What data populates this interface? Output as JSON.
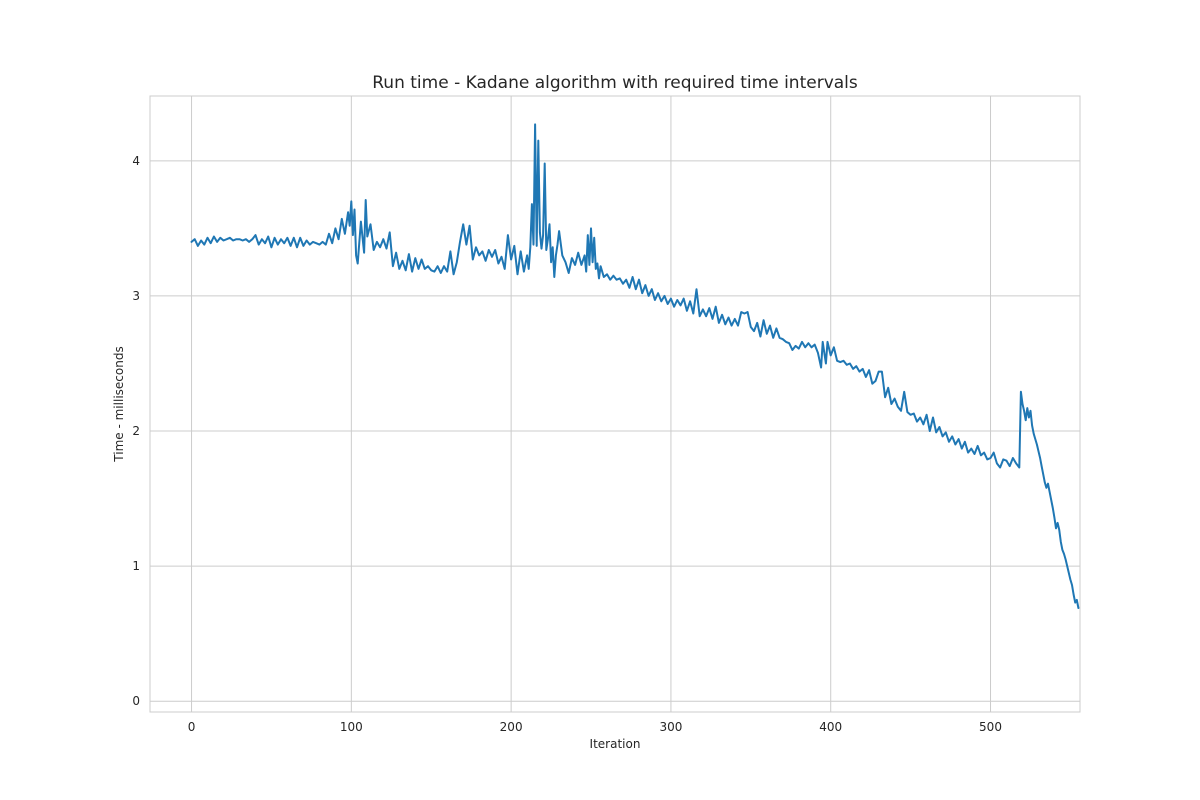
{
  "chart_data": {
    "type": "line",
    "title": "Run time - Kadane algorithm with required time intervals",
    "xlabel": "Iteration",
    "ylabel": "Time - milliseconds",
    "xlim": [
      -26,
      556
    ],
    "ylim": [
      -0.08,
      4.48
    ],
    "xticks": [
      0,
      100,
      200,
      300,
      400,
      500
    ],
    "yticks": [
      0,
      1,
      2,
      3,
      4
    ],
    "grid": true,
    "line_color": "#1f77b4",
    "series": [
      {
        "points": [
          [
            0,
            3.4
          ],
          [
            2,
            3.42
          ],
          [
            4,
            3.37
          ],
          [
            6,
            3.41
          ],
          [
            8,
            3.38
          ],
          [
            10,
            3.43
          ],
          [
            12,
            3.39
          ],
          [
            14,
            3.44
          ],
          [
            16,
            3.4
          ],
          [
            18,
            3.43
          ],
          [
            20,
            3.41
          ],
          [
            22,
            3.42
          ],
          [
            24,
            3.43
          ],
          [
            26,
            3.41
          ],
          [
            28,
            3.42
          ],
          [
            30,
            3.42
          ],
          [
            32,
            3.41
          ],
          [
            34,
            3.42
          ],
          [
            36,
            3.4
          ],
          [
            38,
            3.42
          ],
          [
            40,
            3.45
          ],
          [
            42,
            3.38
          ],
          [
            44,
            3.42
          ],
          [
            46,
            3.39
          ],
          [
            48,
            3.44
          ],
          [
            50,
            3.36
          ],
          [
            52,
            3.43
          ],
          [
            54,
            3.38
          ],
          [
            56,
            3.42
          ],
          [
            58,
            3.39
          ],
          [
            60,
            3.43
          ],
          [
            62,
            3.37
          ],
          [
            64,
            3.43
          ],
          [
            66,
            3.36
          ],
          [
            68,
            3.43
          ],
          [
            70,
            3.37
          ],
          [
            72,
            3.41
          ],
          [
            74,
            3.38
          ],
          [
            76,
            3.4
          ],
          [
            78,
            3.39
          ],
          [
            80,
            3.38
          ],
          [
            82,
            3.4
          ],
          [
            84,
            3.38
          ],
          [
            86,
            3.46
          ],
          [
            88,
            3.39
          ],
          [
            90,
            3.5
          ],
          [
            92,
            3.42
          ],
          [
            94,
            3.57
          ],
          [
            96,
            3.46
          ],
          [
            98,
            3.62
          ],
          [
            99,
            3.52
          ],
          [
            100,
            3.7
          ],
          [
            101,
            3.45
          ],
          [
            102,
            3.64
          ],
          [
            103,
            3.3
          ],
          [
            104,
            3.24
          ],
          [
            106,
            3.55
          ],
          [
            108,
            3.32
          ],
          [
            109,
            3.71
          ],
          [
            110,
            3.44
          ],
          [
            112,
            3.53
          ],
          [
            114,
            3.34
          ],
          [
            116,
            3.4
          ],
          [
            118,
            3.36
          ],
          [
            120,
            3.42
          ],
          [
            122,
            3.35
          ],
          [
            124,
            3.47
          ],
          [
            126,
            3.22
          ],
          [
            128,
            3.32
          ],
          [
            130,
            3.2
          ],
          [
            132,
            3.26
          ],
          [
            134,
            3.19
          ],
          [
            136,
            3.31
          ],
          [
            138,
            3.18
          ],
          [
            140,
            3.28
          ],
          [
            142,
            3.2
          ],
          [
            144,
            3.27
          ],
          [
            146,
            3.2
          ],
          [
            148,
            3.22
          ],
          [
            150,
            3.19
          ],
          [
            152,
            3.18
          ],
          [
            154,
            3.22
          ],
          [
            156,
            3.17
          ],
          [
            158,
            3.22
          ],
          [
            160,
            3.18
          ],
          [
            162,
            3.33
          ],
          [
            164,
            3.16
          ],
          [
            166,
            3.25
          ],
          [
            168,
            3.4
          ],
          [
            170,
            3.53
          ],
          [
            172,
            3.38
          ],
          [
            174,
            3.52
          ],
          [
            176,
            3.27
          ],
          [
            178,
            3.36
          ],
          [
            180,
            3.3
          ],
          [
            182,
            3.33
          ],
          [
            184,
            3.26
          ],
          [
            186,
            3.34
          ],
          [
            188,
            3.29
          ],
          [
            190,
            3.34
          ],
          [
            192,
            3.24
          ],
          [
            194,
            3.29
          ],
          [
            196,
            3.2
          ],
          [
            198,
            3.45
          ],
          [
            200,
            3.27
          ],
          [
            202,
            3.37
          ],
          [
            204,
            3.16
          ],
          [
            206,
            3.33
          ],
          [
            208,
            3.18
          ],
          [
            210,
            3.3
          ],
          [
            211,
            3.2
          ],
          [
            212,
            3.36
          ],
          [
            213,
            3.68
          ],
          [
            214,
            3.38
          ],
          [
            215,
            4.27
          ],
          [
            216,
            3.37
          ],
          [
            217,
            4.15
          ],
          [
            218,
            3.47
          ],
          [
            219,
            3.35
          ],
          [
            220,
            3.45
          ],
          [
            221,
            3.98
          ],
          [
            222,
            3.34
          ],
          [
            223,
            3.42
          ],
          [
            224,
            3.53
          ],
          [
            225,
            3.25
          ],
          [
            226,
            3.36
          ],
          [
            227,
            3.14
          ],
          [
            228,
            3.3
          ],
          [
            229,
            3.38
          ],
          [
            230,
            3.48
          ],
          [
            232,
            3.3
          ],
          [
            234,
            3.25
          ],
          [
            236,
            3.17
          ],
          [
            238,
            3.28
          ],
          [
            240,
            3.23
          ],
          [
            242,
            3.32
          ],
          [
            244,
            3.23
          ],
          [
            246,
            3.3
          ],
          [
            247,
            3.18
          ],
          [
            248,
            3.45
          ],
          [
            249,
            3.23
          ],
          [
            250,
            3.5
          ],
          [
            251,
            3.25
          ],
          [
            252,
            3.43
          ],
          [
            253,
            3.2
          ],
          [
            254,
            3.24
          ],
          [
            255,
            3.13
          ],
          [
            256,
            3.22
          ],
          [
            258,
            3.14
          ],
          [
            260,
            3.16
          ],
          [
            262,
            3.12
          ],
          [
            264,
            3.15
          ],
          [
            266,
            3.12
          ],
          [
            268,
            3.13
          ],
          [
            270,
            3.09
          ],
          [
            272,
            3.12
          ],
          [
            274,
            3.06
          ],
          [
            276,
            3.14
          ],
          [
            278,
            3.05
          ],
          [
            280,
            3.12
          ],
          [
            282,
            3.02
          ],
          [
            284,
            3.08
          ],
          [
            286,
            3.0
          ],
          [
            288,
            3.05
          ],
          [
            290,
            2.97
          ],
          [
            292,
            3.02
          ],
          [
            294,
            2.96
          ],
          [
            296,
            3.0
          ],
          [
            298,
            2.94
          ],
          [
            300,
            2.98
          ],
          [
            302,
            2.92
          ],
          [
            304,
            2.97
          ],
          [
            306,
            2.93
          ],
          [
            308,
            2.98
          ],
          [
            310,
            2.89
          ],
          [
            312,
            2.96
          ],
          [
            314,
            2.87
          ],
          [
            316,
            3.05
          ],
          [
            318,
            2.85
          ],
          [
            320,
            2.9
          ],
          [
            322,
            2.85
          ],
          [
            324,
            2.91
          ],
          [
            326,
            2.83
          ],
          [
            328,
            2.92
          ],
          [
            330,
            2.8
          ],
          [
            332,
            2.86
          ],
          [
            334,
            2.79
          ],
          [
            336,
            2.84
          ],
          [
            338,
            2.78
          ],
          [
            340,
            2.83
          ],
          [
            342,
            2.78
          ],
          [
            344,
            2.88
          ],
          [
            346,
            2.87
          ],
          [
            348,
            2.88
          ],
          [
            350,
            2.77
          ],
          [
            352,
            2.74
          ],
          [
            354,
            2.8
          ],
          [
            356,
            2.7
          ],
          [
            358,
            2.82
          ],
          [
            360,
            2.72
          ],
          [
            362,
            2.78
          ],
          [
            364,
            2.69
          ],
          [
            366,
            2.76
          ],
          [
            368,
            2.69
          ],
          [
            370,
            2.68
          ],
          [
            372,
            2.66
          ],
          [
            374,
            2.65
          ],
          [
            376,
            2.6
          ],
          [
            378,
            2.63
          ],
          [
            380,
            2.61
          ],
          [
            382,
            2.66
          ],
          [
            384,
            2.62
          ],
          [
            386,
            2.65
          ],
          [
            388,
            2.62
          ],
          [
            390,
            2.64
          ],
          [
            392,
            2.58
          ],
          [
            394,
            2.47
          ],
          [
            395,
            2.66
          ],
          [
            397,
            2.5
          ],
          [
            398,
            2.66
          ],
          [
            400,
            2.56
          ],
          [
            402,
            2.62
          ],
          [
            404,
            2.52
          ],
          [
            406,
            2.51
          ],
          [
            408,
            2.52
          ],
          [
            410,
            2.49
          ],
          [
            412,
            2.5
          ],
          [
            414,
            2.46
          ],
          [
            416,
            2.48
          ],
          [
            418,
            2.44
          ],
          [
            420,
            2.46
          ],
          [
            422,
            2.4
          ],
          [
            424,
            2.45
          ],
          [
            426,
            2.35
          ],
          [
            428,
            2.37
          ],
          [
            430,
            2.44
          ],
          [
            432,
            2.44
          ],
          [
            434,
            2.25
          ],
          [
            436,
            2.32
          ],
          [
            438,
            2.2
          ],
          [
            440,
            2.24
          ],
          [
            442,
            2.18
          ],
          [
            444,
            2.15
          ],
          [
            446,
            2.29
          ],
          [
            448,
            2.14
          ],
          [
            450,
            2.12
          ],
          [
            452,
            2.13
          ],
          [
            454,
            2.07
          ],
          [
            456,
            2.1
          ],
          [
            458,
            2.05
          ],
          [
            460,
            2.12
          ],
          [
            462,
            2.0
          ],
          [
            464,
            2.1
          ],
          [
            466,
            1.99
          ],
          [
            468,
            2.03
          ],
          [
            470,
            1.96
          ],
          [
            472,
            1.99
          ],
          [
            474,
            1.92
          ],
          [
            476,
            1.96
          ],
          [
            478,
            1.9
          ],
          [
            480,
            1.94
          ],
          [
            482,
            1.87
          ],
          [
            484,
            1.92
          ],
          [
            486,
            1.84
          ],
          [
            488,
            1.87
          ],
          [
            490,
            1.83
          ],
          [
            492,
            1.89
          ],
          [
            494,
            1.82
          ],
          [
            496,
            1.84
          ],
          [
            498,
            1.79
          ],
          [
            500,
            1.8
          ],
          [
            502,
            1.84
          ],
          [
            504,
            1.76
          ],
          [
            506,
            1.73
          ],
          [
            508,
            1.79
          ],
          [
            510,
            1.78
          ],
          [
            512,
            1.74
          ],
          [
            514,
            1.8
          ],
          [
            516,
            1.76
          ],
          [
            518,
            1.73
          ],
          [
            519,
            2.29
          ],
          [
            520,
            2.2
          ],
          [
            521,
            2.15
          ],
          [
            522,
            2.08
          ],
          [
            523,
            2.17
          ],
          [
            524,
            2.1
          ],
          [
            525,
            2.15
          ],
          [
            526,
            2.04
          ],
          [
            527,
            1.98
          ],
          [
            528,
            1.94
          ],
          [
            529,
            1.9
          ],
          [
            530,
            1.85
          ],
          [
            531,
            1.8
          ],
          [
            532,
            1.74
          ],
          [
            533,
            1.68
          ],
          [
            534,
            1.62
          ],
          [
            535,
            1.58
          ],
          [
            536,
            1.61
          ],
          [
            537,
            1.55
          ],
          [
            538,
            1.49
          ],
          [
            539,
            1.43
          ],
          [
            540,
            1.36
          ],
          [
            541,
            1.28
          ],
          [
            542,
            1.32
          ],
          [
            543,
            1.27
          ],
          [
            544,
            1.18
          ],
          [
            545,
            1.12
          ],
          [
            546,
            1.09
          ],
          [
            547,
            1.05
          ],
          [
            548,
            1.0
          ],
          [
            549,
            0.95
          ],
          [
            550,
            0.9
          ],
          [
            551,
            0.86
          ],
          [
            552,
            0.79
          ],
          [
            553,
            0.73
          ],
          [
            554,
            0.75
          ],
          [
            555,
            0.69
          ]
        ]
      }
    ]
  }
}
